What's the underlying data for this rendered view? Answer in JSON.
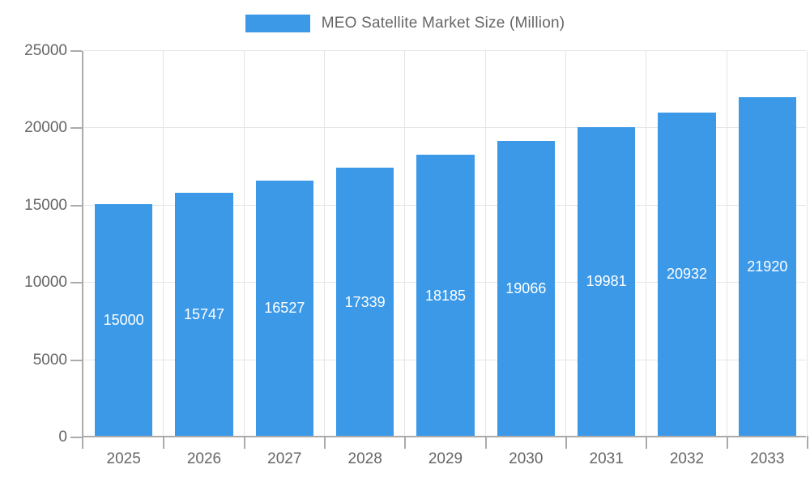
{
  "chart_data": {
    "type": "bar",
    "title": "MEO Satellite Market Size (Million)",
    "categories": [
      "2025",
      "2026",
      "2027",
      "2028",
      "2029",
      "2030",
      "2031",
      "2032",
      "2033"
    ],
    "values": [
      15000,
      15747,
      16527,
      17339,
      18185,
      19066,
      19981,
      20932,
      21920
    ],
    "value_labels": [
      "15000",
      "15747",
      "16527",
      "17339",
      "18185",
      "19066",
      "19981",
      "20932",
      "21920"
    ],
    "xlabel": "",
    "ylabel": "",
    "ylim": [
      0,
      25000
    ],
    "y_ticks": [
      0,
      5000,
      10000,
      15000,
      20000,
      25000
    ],
    "y_tick_labels": [
      "0",
      "5000",
      "10000",
      "15000",
      "20000",
      "25000"
    ],
    "grid": true,
    "legend_position": "top",
    "legend_label": "MEO Satellite Market Size (Million)",
    "colors": {
      "bar": "#3b99e8",
      "bar_value_text": "#ffffff",
      "axis_line": "#ababab",
      "gridline": "#e5e5e5",
      "tick_label_text": "#666666",
      "legend_text": "#666666",
      "background": "#ffffff"
    }
  }
}
